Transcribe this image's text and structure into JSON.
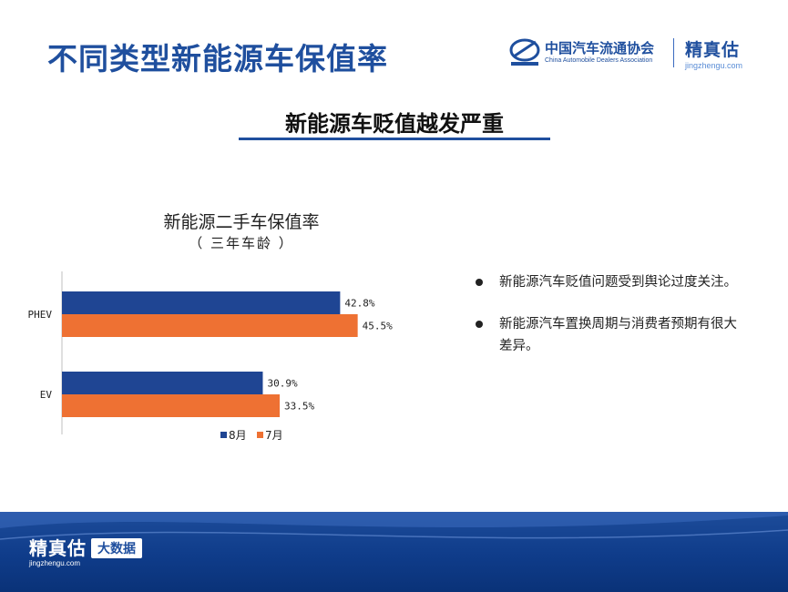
{
  "header": {
    "title": "不同类型新能源车保值率",
    "org_logo_cn": "中国汽车流通协会",
    "org_logo_en": "China Automobile Dealers Association",
    "brand_cn": "精真估",
    "brand_en": "jingzhengu.com"
  },
  "subtitle": "新能源车贬值越发严重",
  "chart_data": {
    "type": "bar",
    "orientation": "horizontal",
    "title": "新能源二手车保值率",
    "subtitle": "（ 三年车龄 ）",
    "categories": [
      "PHEV",
      "EV"
    ],
    "series": [
      {
        "name": "8月",
        "values": [
          42.8,
          30.9
        ],
        "labels": [
          "42.8%",
          "30.9%"
        ],
        "color": "#1f4593"
      },
      {
        "name": "7月",
        "values": [
          45.5,
          33.5
        ],
        "labels": [
          "45.5%",
          "33.5%"
        ],
        "color": "#ee7133"
      }
    ],
    "unit": "%",
    "legend_position": "bottom",
    "grid": false
  },
  "bullets": [
    "新能源汽车贬值问题受到舆论过度关注。",
    "新能源汽车置换周期与消费者预期有很大差异。"
  ],
  "footer": {
    "brand_cn": "精真估",
    "brand_en": "jingzhengu.com",
    "badge": "大数据"
  },
  "colors": {
    "accent": "#1f4f9e",
    "series_8": "#1f4593",
    "series_7": "#ee7133"
  }
}
